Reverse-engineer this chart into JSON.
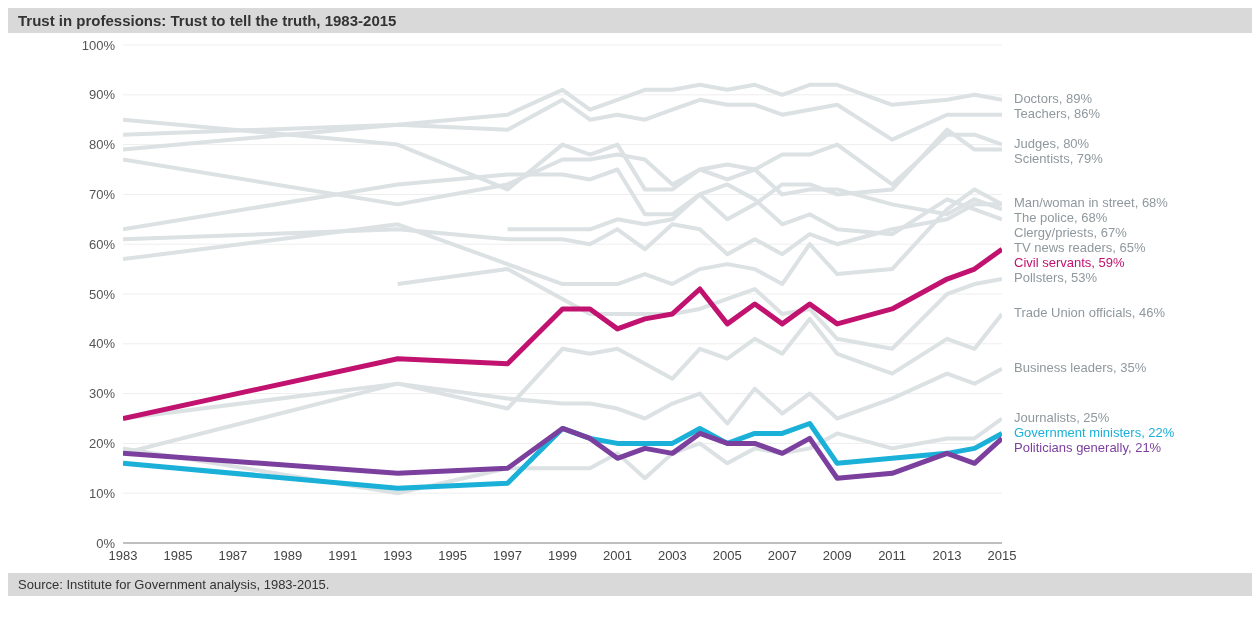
{
  "chart_data": {
    "type": "line",
    "title": "Trust in professions: Trust to tell the truth, 1983-2015",
    "annotations": [
      "Source: Institute for Government analysis, 1983-2015."
    ],
    "x": [
      1983,
      1993,
      1997,
      1999,
      2000,
      2001,
      2002,
      2003,
      2004,
      2005,
      2006,
      2007,
      2008,
      2009,
      2011,
      2013,
      2014,
      2015
    ],
    "series": [
      {
        "name": "Doctors, 89%",
        "color": "#dce1e3",
        "values": [
          82,
          84,
          86,
          91,
          87,
          89,
          91,
          91,
          92,
          91,
          92,
          90,
          92,
          92,
          88,
          89,
          90,
          89
        ]
      },
      {
        "name": "Teachers, 86%",
        "color": "#dce1e3",
        "values": [
          79,
          84,
          83,
          89,
          85,
          86,
          85,
          87,
          89,
          88,
          88,
          86,
          87,
          88,
          81,
          86,
          86,
          86
        ]
      },
      {
        "name": "Judges, 80%",
        "color": "#dce1e3",
        "values": [
          77,
          68,
          72,
          77,
          77,
          78,
          77,
          72,
          75,
          76,
          75,
          78,
          78,
          80,
          72,
          82,
          82,
          80
        ]
      },
      {
        "name": "Scientists, 79%",
        "color": "#dce1e3",
        "values": [
          null,
          null,
          63,
          63,
          63,
          65,
          64,
          65,
          70,
          65,
          68,
          72,
          72,
          70,
          71,
          83,
          79,
          79
        ]
      },
      {
        "name": "Man/woman in street, 68%",
        "color": "#dce1e3",
        "values": [
          57,
          64,
          56,
          52,
          52,
          52,
          54,
          52,
          55,
          56,
          55,
          52,
          60,
          54,
          55,
          67,
          71,
          68
        ]
      },
      {
        "name": "The police, 68%",
        "color": "#dce1e3",
        "values": [
          61,
          63,
          61,
          61,
          60,
          63,
          59,
          64,
          63,
          58,
          61,
          58,
          62,
          60,
          63,
          65,
          68,
          68
        ]
      },
      {
        "name": "Clergy/priests, 67%",
        "color": "#dce1e3",
        "values": [
          85,
          80,
          71,
          80,
          78,
          80,
          71,
          71,
          75,
          73,
          75,
          70,
          71,
          71,
          68,
          66,
          69,
          67
        ]
      },
      {
        "name": "TV news readers, 65%",
        "color": "#dce1e3",
        "values": [
          63,
          72,
          74,
          74,
          73,
          75,
          66,
          66,
          70,
          72,
          69,
          64,
          66,
          63,
          62,
          69,
          67,
          65
        ]
      },
      {
        "name": "Pollsters, 53%",
        "color": "#dce1e3",
        "values": [
          null,
          52,
          55,
          49,
          46,
          46,
          46,
          46,
          47,
          49,
          51,
          46,
          47,
          41,
          39,
          50,
          52,
          53
        ]
      },
      {
        "name": "Trade Union officials, 46%",
        "color": "#dce1e3",
        "values": [
          18,
          32,
          27,
          39,
          38,
          39,
          36,
          33,
          39,
          37,
          41,
          38,
          45,
          38,
          34,
          41,
          39,
          46
        ]
      },
      {
        "name": "Business leaders, 35%",
        "color": "#dce1e3",
        "values": [
          25,
          32,
          29,
          28,
          28,
          27,
          25,
          28,
          30,
          24,
          31,
          26,
          30,
          25,
          29,
          34,
          32,
          35
        ]
      },
      {
        "name": "Journalists, 25%",
        "color": "#dce1e3",
        "values": [
          19,
          10,
          15,
          15,
          15,
          18,
          13,
          18,
          20,
          16,
          19,
          18,
          19,
          22,
          19,
          21,
          21,
          25
        ]
      },
      {
        "name": "Civil servants, 59%",
        "color": "#c0126e",
        "values": [
          25,
          37,
          36,
          47,
          47,
          43,
          45,
          46,
          51,
          44,
          48,
          44,
          48,
          44,
          47,
          53,
          55,
          59
        ]
      },
      {
        "name": "Government ministers, 22%",
        "color": "#1ab0d8",
        "values": [
          16,
          11,
          12,
          23,
          21,
          20,
          20,
          20,
          23,
          20,
          22,
          22,
          24,
          16,
          17,
          18,
          19,
          22
        ]
      },
      {
        "name": "Politicians generally, 21%",
        "color": "#7b3f9e",
        "values": [
          18,
          14,
          15,
          23,
          21,
          17,
          19,
          18,
          22,
          20,
          20,
          18,
          21,
          13,
          14,
          18,
          16,
          21
        ]
      }
    ],
    "xlim": [
      1983,
      2015
    ],
    "xticks": [
      1983,
      1985,
      1987,
      1989,
      1991,
      1993,
      1995,
      1997,
      1999,
      2001,
      2003,
      2005,
      2007,
      2009,
      2011,
      2013,
      2015
    ],
    "ylim": [
      0,
      100
    ],
    "yticks": [
      {
        "value": 0,
        "label": "0%"
      },
      {
        "value": 10,
        "label": "10%"
      },
      {
        "value": 20,
        "label": "20%"
      },
      {
        "value": 30,
        "label": "30%"
      },
      {
        "value": 40,
        "label": "40%"
      },
      {
        "value": 50,
        "label": "50%"
      },
      {
        "value": 60,
        "label": "60%"
      },
      {
        "value": 70,
        "label": "70%"
      },
      {
        "value": 80,
        "label": "80%"
      },
      {
        "value": 90,
        "label": "90%"
      },
      {
        "value": 100,
        "label": "100%"
      }
    ],
    "grid": "y",
    "legend": "right",
    "marker": "none",
    "line_style": "solid"
  }
}
